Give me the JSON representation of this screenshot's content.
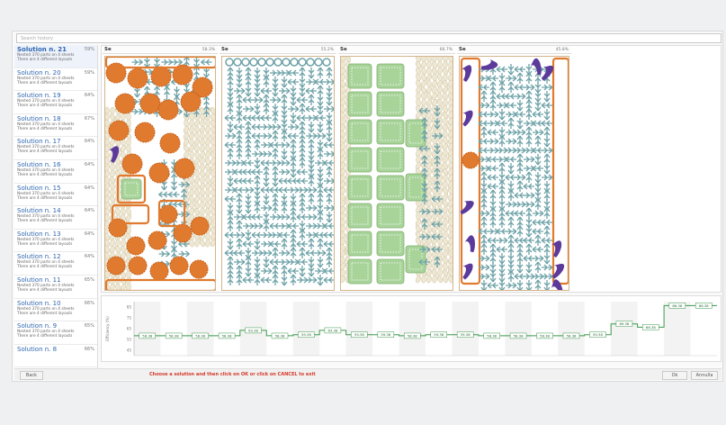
{
  "search": {
    "placeholder": "Search history"
  },
  "solutions": [
    {
      "title": "Solution n. 21",
      "pct": "59%",
      "line1": "Nested 370 parts on 4 sheets",
      "line2": "There are 4 different layouts"
    },
    {
      "title": "Solution n. 20",
      "pct": "59%",
      "line1": "Nested 370 parts on 4 sheets",
      "line2": "There are 4 different layouts"
    },
    {
      "title": "Solution n. 19",
      "pct": "64%",
      "line1": "Nested 370 parts on 4 sheets",
      "line2": "There are 4 different layouts"
    },
    {
      "title": "Solution n. 18",
      "pct": "67%",
      "line1": "Nested 370 parts on 4 sheets",
      "line2": "There are 4 different layouts"
    },
    {
      "title": "Solution n. 17",
      "pct": "64%",
      "line1": "Nested 370 parts on 4 sheets",
      "line2": "There are 4 different layouts"
    },
    {
      "title": "Solution n. 16",
      "pct": "64%",
      "line1": "Nested 370 parts on 4 sheets",
      "line2": "There are 4 different layouts"
    },
    {
      "title": "Solution n. 15",
      "pct": "64%",
      "line1": "Nested 370 parts on 4 sheets",
      "line2": "There are 4 different layouts"
    },
    {
      "title": "Solution n. 14",
      "pct": "64%",
      "line1": "Nested 370 parts on 4 sheets",
      "line2": "There are 4 different layouts"
    },
    {
      "title": "Solution n. 13",
      "pct": "64%",
      "line1": "Nested 370 parts on 4 sheets",
      "line2": "There are 4 different layouts"
    },
    {
      "title": "Solution n. 12",
      "pct": "64%",
      "line1": "Nested 370 parts on 4 sheets",
      "line2": "There are 4 different layouts"
    },
    {
      "title": "Solution n. 11",
      "pct": "65%",
      "line1": "Nested 370 parts on 4 sheets",
      "line2": "There are 4 different layouts"
    },
    {
      "title": "Solution n. 10",
      "pct": "66%",
      "line1": "Nested 370 parts on 4 sheets",
      "line2": "There are 4 different layouts"
    },
    {
      "title": "Solution n. 9",
      "pct": "65%",
      "line1": "Nested 370 parts on 4 sheets",
      "line2": "There are 4 different layouts"
    },
    {
      "title": "Solution n. 8",
      "pct": "66%",
      "line1": "",
      "line2": ""
    }
  ],
  "sheets": [
    {
      "label": "Se",
      "eff": "58.3%"
    },
    {
      "label": "Se",
      "eff": "55.2%"
    },
    {
      "label": "Se",
      "eff": "66.7%"
    },
    {
      "label": "Se",
      "eff": "45.8%"
    }
  ],
  "chart_data": {
    "type": "line",
    "ylabel": "Efficiency (%)",
    "ylim": [
      40,
      90
    ],
    "yticks": [
      45,
      55,
      65,
      75,
      85
    ],
    "labels": [
      "58.38",
      "58.38",
      "58.38",
      "58.38",
      "63.38",
      "58.38",
      "59.38",
      "63.38",
      "59.38",
      "59.38",
      "58.38",
      "59.38",
      "59.38",
      "58.38",
      "58.38",
      "58.38",
      "58.38",
      "59.38",
      "69.38",
      "66.38",
      "86.38",
      "86.38"
    ],
    "values": [
      58.4,
      58.4,
      58.4,
      58.4,
      63.4,
      58.4,
      59.4,
      63.4,
      59.4,
      59.4,
      58.4,
      59.4,
      59.4,
      58.4,
      58.4,
      58.4,
      58.4,
      59.4,
      69.4,
      66.4,
      86.4,
      86.4
    ]
  },
  "bottom": {
    "back": "Back",
    "message": "Choose a solution and then click on OK or click on CANCEL to exit",
    "ok": "Ok",
    "cancel": "Annulla"
  },
  "colors": {
    "orange": "#e07a2e",
    "teal": "#6fa3a8",
    "green": "#a8d49a",
    "purple": "#5b3a9b",
    "cream": "#ede7d4"
  }
}
